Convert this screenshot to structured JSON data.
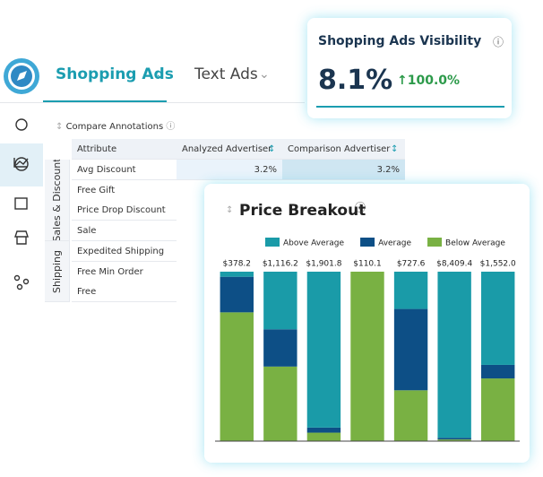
{
  "tabs": [
    "Shopping Ads",
    "Text Ads"
  ],
  "visibility_card": {
    "title": "Shopping Ads Visibility",
    "value": "8.1%",
    "change": "100.0%"
  },
  "compare_annotations": "Compare Annotations",
  "table": {
    "header": [
      "Attribute",
      "Analyzed Advertiser",
      "Comparison Advertiser"
    ],
    "groups": [
      {
        "label": "Sales & Discount",
        "rows": [
          [
            "Avg Discount",
            "3.2%",
            "3.2%"
          ],
          [
            "Free Gift"
          ],
          [
            "Price Drop Discount"
          ],
          [
            "Sale"
          ]
        ]
      },
      {
        "label": "Shipping",
        "rows": [
          [
            "Expedited Shipping"
          ],
          [
            "Free Min Order"
          ],
          [
            "Free"
          ]
        ]
      }
    ]
  },
  "chart_data": {
    "type": "stacked_bar",
    "title": "Price Breakout",
    "categories": [
      "$378.2",
      "$1,116.2",
      "$1,901.8",
      "$110.1",
      "$727.6",
      "$8,409.4",
      "$1,552.0"
    ],
    "series": [
      {
        "name": "Above Average",
        "color": "#1a9ba8",
        "values": [
          3,
          34,
          92,
          0,
          22,
          98,
          55
        ]
      },
      {
        "name": "Average",
        "color": "#0d4f86",
        "values": [
          21,
          22,
          3,
          0,
          48,
          1,
          8
        ]
      },
      {
        "name": "Below Average",
        "color": "#79b143",
        "values": [
          76,
          44,
          5,
          100,
          30,
          1,
          37
        ]
      }
    ],
    "ylim": [
      0,
      100
    ],
    "legend": "top"
  }
}
